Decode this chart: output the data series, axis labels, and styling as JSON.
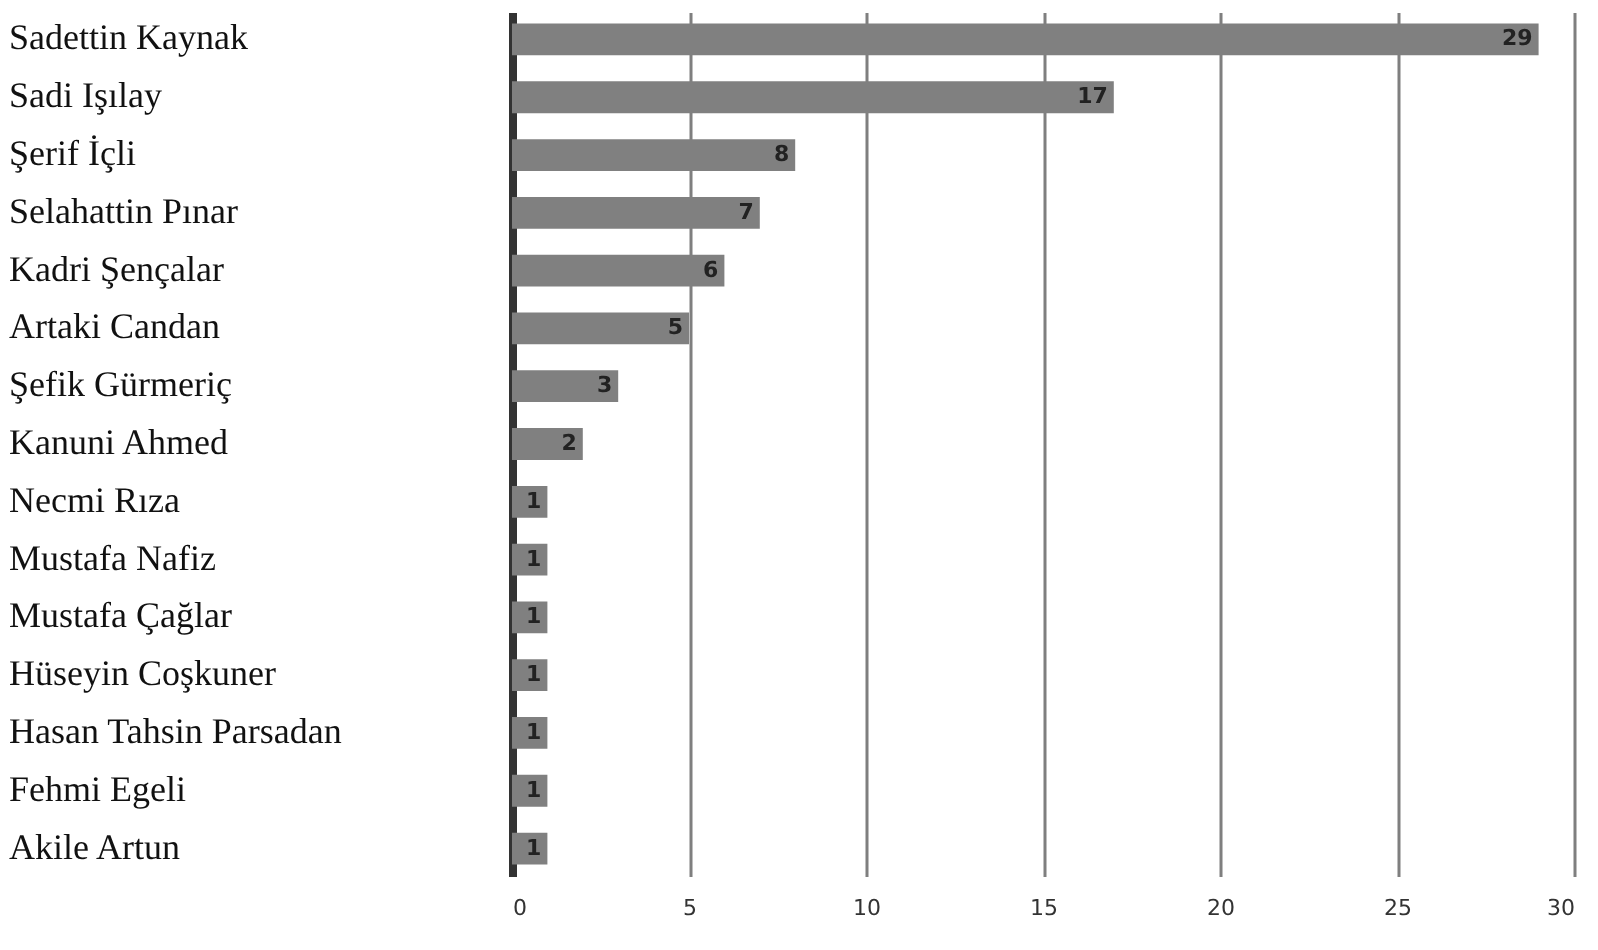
{
  "chart_data": {
    "type": "bar",
    "orientation": "horizontal",
    "categories": [
      "Sadettin Kaynak",
      "Sadi Işılay",
      "Şerif İçli",
      "Selahattin Pınar",
      "Kadri Şençalar",
      "Artaki Candan",
      "Şefik Gürmeriç",
      "Kanuni Ahmed",
      "Necmi Rıza",
      "Mustafa Nafiz",
      "Mustafa Çağlar",
      "Hüseyin Coşkuner",
      "Hasan Tahsin Parsadan",
      "Fehmi Egeli",
      "Akile Artun"
    ],
    "values": [
      29,
      17,
      8,
      7,
      6,
      5,
      3,
      2,
      1,
      1,
      1,
      1,
      1,
      1,
      1
    ],
    "color": "#808080",
    "xlim": [
      0,
      30
    ],
    "xticks": [
      0,
      5,
      10,
      15,
      20,
      25,
      30
    ],
    "grid": "x",
    "data_labels": true
  }
}
